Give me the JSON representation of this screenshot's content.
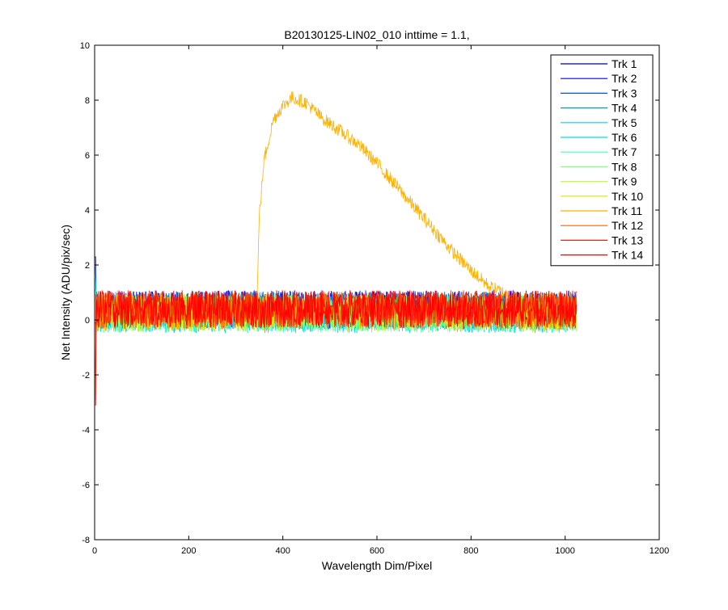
{
  "chart_data": {
    "type": "line",
    "title": "B20130125-LIN02_010 inttime = 1.1,",
    "xlabel": "Wavelength Dim/Pixel",
    "ylabel": "Net Intensity (ADU/pix/sec)",
    "xlim": [
      0,
      1200
    ],
    "ylim": [
      -8,
      10
    ],
    "xticks": [
      0,
      200,
      400,
      600,
      800,
      1000,
      1200
    ],
    "yticks": [
      -8,
      -6,
      -4,
      -2,
      0,
      2,
      4,
      6,
      8,
      10
    ],
    "grid": false,
    "legend_position": "top-right",
    "x_range": [
      1,
      1024
    ],
    "noise_band": [
      -0.3,
      1.0
    ],
    "series": [
      {
        "name": "Trk 1",
        "color": "#00008f",
        "mean": 0.35
      },
      {
        "name": "Trk 2",
        "color": "#0000ff",
        "mean": 0.4
      },
      {
        "name": "Trk 3",
        "color": "#0050ff",
        "mean": 0.38
      },
      {
        "name": "Trk 4",
        "color": "#00a0c0",
        "mean": 0.33
      },
      {
        "name": "Trk 5",
        "color": "#00cfff",
        "mean": 0.25
      },
      {
        "name": "Trk 6",
        "color": "#00dfdf",
        "mean": 0.2
      },
      {
        "name": "Trk 7",
        "color": "#40ffbf",
        "mean": 0.22
      },
      {
        "name": "Trk 8",
        "color": "#80ff80",
        "mean": 0.25
      },
      {
        "name": "Trk 9",
        "color": "#bfff40",
        "mean": 0.25
      },
      {
        "name": "Trk 10",
        "color": "#e0e000",
        "mean": 0.3
      },
      {
        "name": "Trk 11",
        "color": "#ffb000",
        "mean": 0.3,
        "peak": {
          "x": [
            345,
            350,
            360,
            380,
            400,
            420,
            450,
            480,
            520,
            560,
            600,
            640,
            680,
            720,
            760,
            800,
            840,
            880,
            900
          ],
          "y": [
            0.5,
            3.8,
            5.8,
            7.3,
            7.8,
            8.1,
            7.9,
            7.4,
            6.9,
            6.4,
            5.7,
            4.9,
            4.1,
            3.3,
            2.5,
            1.8,
            1.2,
            0.9,
            0.7
          ]
        }
      },
      {
        "name": "Trk 12",
        "color": "#ff6000",
        "mean": 0.35
      },
      {
        "name": "Trk 13",
        "color": "#ff2000",
        "mean": 0.4
      },
      {
        "name": "Trk 14",
        "color": "#ff0000",
        "mean": 0.4
      }
    ]
  }
}
